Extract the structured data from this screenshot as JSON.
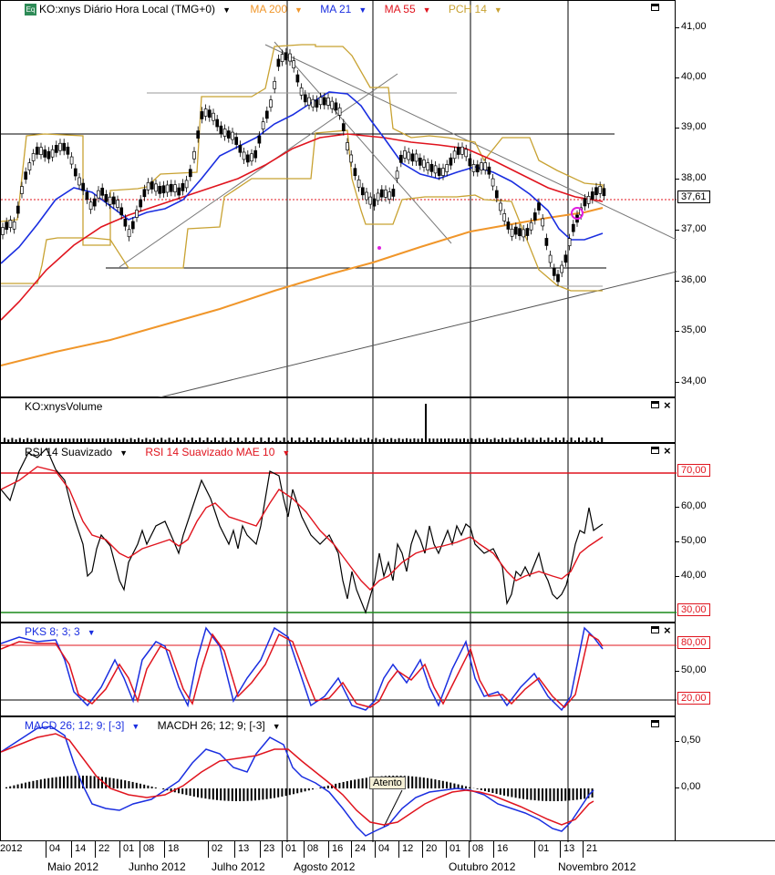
{
  "price_pane": {
    "symbol_badge": "Eq",
    "title": "KO:xnys Diário Hora Local (TMG+0)",
    "indicators": [
      {
        "label": "MA 200",
        "color": "#f0962a"
      },
      {
        "label": "MA 21",
        "color": "#1a2ee0"
      },
      {
        "label": "MA 55",
        "color": "#e0141e"
      },
      {
        "label": "PCH 14",
        "color": "#c8a232"
      }
    ],
    "axis_ticks": [
      "41,00",
      "40,00",
      "39,00",
      "38,00",
      "37,00",
      "36,00",
      "35,00",
      "34,00"
    ],
    "current_price_tag": "37,61"
  },
  "volume_pane": {
    "title": "KO:xnysVolume"
  },
  "rsi_pane": {
    "title": "RSI 14 Suavizado",
    "title2": "RSI 14 Suavizado MAE 10",
    "axis_ticks": [
      "60,00",
      "50,00",
      "40,00"
    ],
    "upper_tag": "70,00",
    "lower_tag": "30,00"
  },
  "pks_pane": {
    "title": "PKS 8; 3; 3",
    "axis_ticks": [
      "50,00"
    ],
    "upper_tag": "80,00",
    "lower_tag": "20,00"
  },
  "macd_pane": {
    "title": "MACD 26; 12; 9; [-3]",
    "title2": "MACDH 26; 12; 9; [-3]",
    "axis_ticks": [
      "0,50",
      "0,00"
    ],
    "annotation": "Atento"
  },
  "date_axis": {
    "days": [
      "2012",
      "04",
      "14",
      "22",
      "01",
      "08",
      "18",
      "02",
      "13",
      "23",
      "01",
      "08",
      "16",
      "24",
      "04",
      "12",
      "20",
      "01",
      "08",
      "16",
      "01",
      "13",
      "21"
    ],
    "months": [
      "Maio 2012",
      "Junho 2012",
      "Julho 2012",
      "Agosto 2012",
      "Outubro 2012",
      "Novembro 2012"
    ]
  },
  "chart_data": {
    "type": "line",
    "symbol": "KO:xnys",
    "ylim": [
      33.7,
      41.3
    ],
    "price_levels": {
      "current": 37.61
    },
    "rsi_levels": [
      70,
      30
    ],
    "pks_levels": [
      80,
      20
    ]
  }
}
